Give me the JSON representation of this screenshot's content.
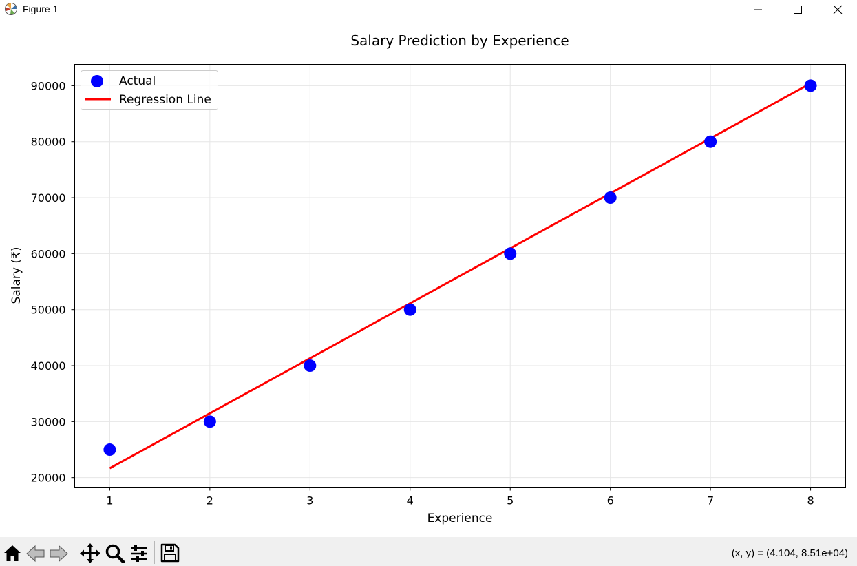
{
  "window": {
    "title": "Figure 1",
    "icons": [
      "matplotlib-logo-icon",
      "minimize-icon",
      "maximize-icon",
      "close-icon"
    ]
  },
  "toolbar": {
    "icons": [
      "home-icon",
      "back-arrow-icon",
      "forward-arrow-icon",
      "pan-icon",
      "zoom-icon",
      "subplots-config-icon",
      "save-icon"
    ],
    "coordinates": "(x, y) = (4.104, 8.51e+04)"
  },
  "chart_data": {
    "type": "scatter",
    "title": "Salary Prediction by Experience",
    "xlabel": "Experience",
    "ylabel": "Salary (₹)",
    "xlim": [
      0.65,
      8.35
    ],
    "ylim": [
      18300,
      93800
    ],
    "xticks": [
      1,
      2,
      3,
      4,
      5,
      6,
      7,
      8
    ],
    "yticks": [
      20000,
      30000,
      40000,
      50000,
      60000,
      70000,
      80000,
      90000
    ],
    "grid": true,
    "legend_position": "top-left",
    "series": [
      {
        "name": "Actual",
        "kind": "scatter",
        "color": "#0000ff",
        "x": [
          1,
          2,
          3,
          4,
          5,
          6,
          7,
          8
        ],
        "y": [
          25000,
          30000,
          40000,
          50000,
          60000,
          70000,
          80000,
          90000
        ]
      },
      {
        "name": "Regression Line",
        "kind": "line",
        "color": "#ff0000",
        "x": [
          1,
          8
        ],
        "y": [
          21666.7,
          90416.7
        ]
      }
    ]
  }
}
